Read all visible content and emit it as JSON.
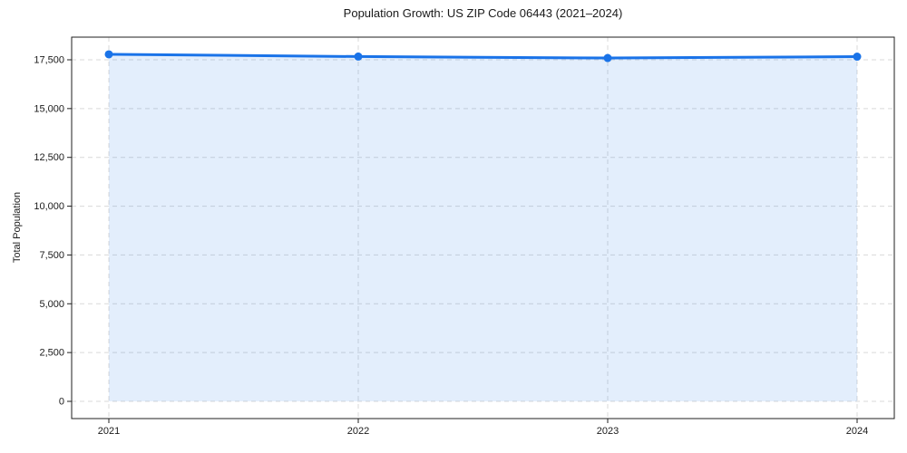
{
  "chart_data": {
    "type": "area",
    "title": "Population Growth: US ZIP Code 06443 (2021–2024)",
    "xlabel": "",
    "ylabel": "Total Population",
    "categories": [
      "2021",
      "2022",
      "2023",
      "2024"
    ],
    "series": [
      {
        "name": "Total Population",
        "values": [
          17780,
          17665,
          17590,
          17660
        ]
      }
    ],
    "yticks": [
      0,
      2500,
      5000,
      7500,
      10000,
      12500,
      15000,
      17500
    ],
    "ylim": [
      -882,
      18660
    ],
    "grid": "dashed-both",
    "legend": "none",
    "marker": "circle",
    "colors": {
      "line": "#1a73e8",
      "marker": "#1a73e8",
      "fill": "#1a73e8",
      "fill_opacity": 0.12,
      "grid": "#d9d9d9",
      "spine": "#1f1f1f",
      "text": "#1a1a1a",
      "background": "#ffffff"
    }
  }
}
